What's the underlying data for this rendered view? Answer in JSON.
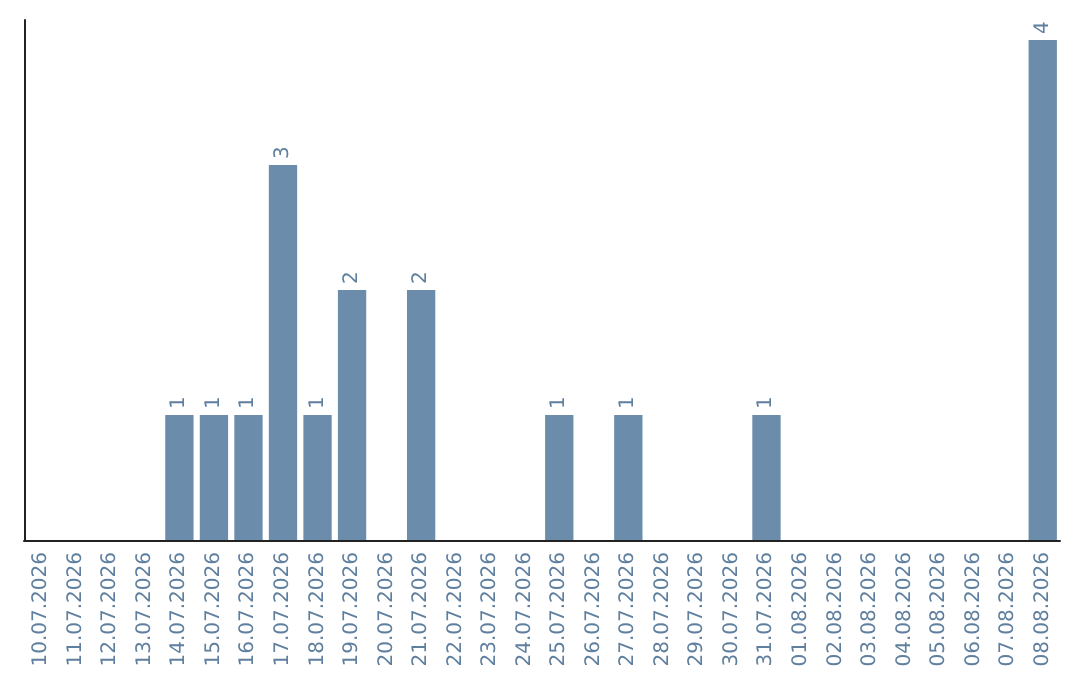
{
  "chart_data": {
    "type": "bar",
    "categories": [
      "10.07.2026",
      "11.07.2026",
      "12.07.2026",
      "13.07.2026",
      "14.07.2026",
      "15.07.2026",
      "16.07.2026",
      "17.07.2026",
      "18.07.2026",
      "19.07.2026",
      "20.07.2026",
      "21.07.2026",
      "22.07.2026",
      "23.07.2026",
      "24.07.2026",
      "25.07.2026",
      "26.07.2026",
      "27.07.2026",
      "28.07.2026",
      "29.07.2026",
      "30.07.2026",
      "31.07.2026",
      "01.08.2026",
      "02.08.2026",
      "03.08.2026",
      "04.08.2026",
      "05.08.2026",
      "06.08.2026",
      "07.08.2026",
      "08.08.2026"
    ],
    "values": [
      0,
      0,
      0,
      0,
      1,
      1,
      1,
      3,
      1,
      2,
      0,
      2,
      0,
      0,
      0,
      1,
      0,
      1,
      0,
      0,
      0,
      1,
      0,
      0,
      0,
      0,
      0,
      0,
      0,
      4
    ],
    "value_labels": [
      null,
      null,
      null,
      null,
      "1",
      "1",
      "1",
      "3",
      "1",
      "2",
      null,
      "2",
      null,
      null,
      null,
      "1",
      null,
      "1",
      null,
      null,
      null,
      "1",
      null,
      null,
      null,
      null,
      null,
      null,
      null,
      "4"
    ],
    "color": "#6b8caa"
  }
}
